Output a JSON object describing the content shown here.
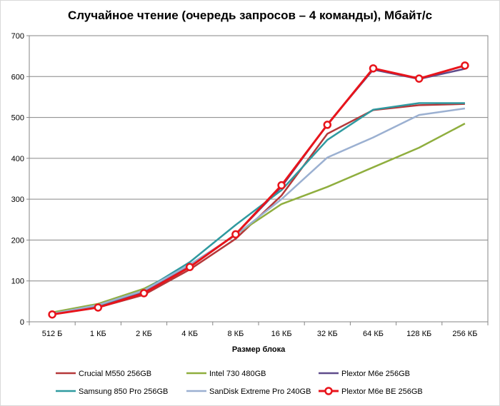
{
  "chart_data": {
    "type": "line",
    "title": "Случайное чтение (очередь запросов – 4 команды), Мбайт/с",
    "xlabel": "Размер блока",
    "ylabel": "",
    "categories": [
      "512 Б",
      "1 КБ",
      "2 КБ",
      "4 КБ",
      "8 КБ",
      "16 КБ",
      "32 КБ",
      "64 КБ",
      "128 КБ",
      "256 КБ"
    ],
    "ylim": [
      0,
      700
    ],
    "yticks": [
      0,
      100,
      200,
      300,
      400,
      500,
      600,
      700
    ],
    "grid": true,
    "legend_position": "bottom",
    "series": [
      {
        "name": "Crucial M550 256GB",
        "color": "#b5383a",
        "marker": false,
        "values": [
          19,
          35,
          66,
          128,
          203,
          309,
          460,
          518,
          530,
          533
        ]
      },
      {
        "name": "Intel 730 480GB",
        "color": "#8fae3e",
        "marker": false,
        "values": [
          23,
          44,
          81,
          138,
          213,
          288,
          330,
          378,
          426,
          485
        ]
      },
      {
        "name": "Plextor M6e 256GB",
        "color": "#5f4b8b",
        "marker": false,
        "values": [
          18,
          36,
          72,
          135,
          214,
          330,
          483,
          617,
          594,
          619
        ]
      },
      {
        "name": "Samsung 850 Pro 256GB",
        "color": "#2f9aa0",
        "marker": false,
        "values": [
          20,
          40,
          77,
          146,
          237,
          322,
          445,
          519,
          535,
          535
        ]
      },
      {
        "name": "SanDisk Extreme Pro 240GB",
        "color": "#9bb0d1",
        "marker": false,
        "values": [
          20,
          41,
          77,
          140,
          212,
          300,
          402,
          451,
          506,
          522
        ]
      },
      {
        "name": "Plextor M6e BE 256GB",
        "color": "#e8141b",
        "marker": true,
        "values": [
          18,
          35,
          70,
          134,
          214,
          334,
          482,
          620,
          595,
          627
        ]
      }
    ]
  }
}
